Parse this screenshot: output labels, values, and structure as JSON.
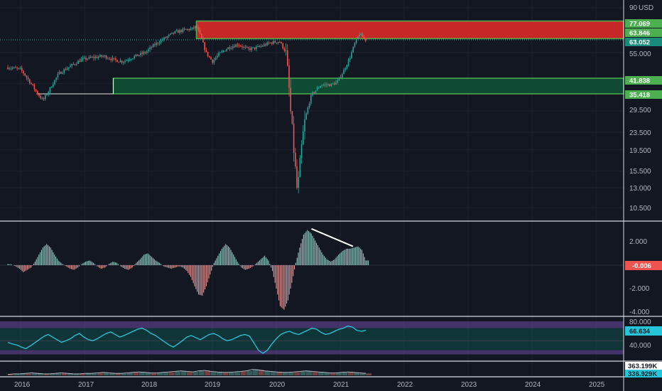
{
  "currency": "USD",
  "colors": {
    "background": "#131722",
    "bull": "#26a69a",
    "bear": "#ef5350",
    "resistance_zone": "#c62828",
    "support_zone": "#0f4a33",
    "zone_border": "#4caf50",
    "rsi_line": "#26c6da",
    "rsi_band": "#7e57c2",
    "histogram_pos": "#9fd8cf",
    "histogram_neg": "#f3a3a3"
  },
  "chart_data": [
    {
      "type": "candlestick",
      "panel": "price",
      "x_ticks": [
        "2016",
        "2017",
        "2018",
        "2019",
        "2020",
        "2021",
        "2022",
        "2023",
        "2024",
        "2025"
      ],
      "y_scale": "log",
      "y_tick_labels": [
        "90",
        "55.000",
        "39.500",
        "29.500",
        "23.500",
        "19.500",
        "15.500",
        "13.000",
        "10.500"
      ],
      "price_labels": [
        "77.069",
        "63.846",
        "63.052",
        "41.838",
        "35.418"
      ],
      "zones": [
        {
          "name": "resistance",
          "from": 63.846,
          "to": 77.069,
          "start": 2018.75
        },
        {
          "name": "support",
          "from": 35.418,
          "to": 41.838,
          "start": 2017.45
        }
      ],
      "last_price": 63.052,
      "path": [
        [
          2015.8,
          47
        ],
        [
          2016.0,
          46
        ],
        [
          2016.15,
          40
        ],
        [
          2016.25,
          36
        ],
        [
          2016.35,
          33
        ],
        [
          2016.45,
          37
        ],
        [
          2016.6,
          44
        ],
        [
          2016.8,
          48
        ],
        [
          2016.95,
          51
        ],
        [
          2017.1,
          52
        ],
        [
          2017.3,
          53
        ],
        [
          2017.45,
          51
        ],
        [
          2017.6,
          50
        ],
        [
          2017.8,
          53
        ],
        [
          2017.95,
          55
        ],
        [
          2018.1,
          60
        ],
        [
          2018.25,
          64
        ],
        [
          2018.4,
          68
        ],
        [
          2018.55,
          70
        ],
        [
          2018.7,
          71
        ],
        [
          2018.75,
          73
        ],
        [
          2018.8,
          67
        ],
        [
          2018.9,
          55
        ],
        [
          2019.0,
          50
        ],
        [
          2019.1,
          54
        ],
        [
          2019.25,
          58
        ],
        [
          2019.4,
          60
        ],
        [
          2019.55,
          57
        ],
        [
          2019.7,
          58
        ],
        [
          2019.9,
          61
        ],
        [
          2020.05,
          62
        ],
        [
          2020.15,
          55
        ],
        [
          2020.22,
          30
        ],
        [
          2020.28,
          18
        ],
        [
          2020.33,
          12
        ],
        [
          2020.38,
          18
        ],
        [
          2020.45,
          27
        ],
        [
          2020.55,
          35
        ],
        [
          2020.7,
          39
        ],
        [
          2020.85,
          39
        ],
        [
          2020.95,
          40
        ],
        [
          2021.05,
          45
        ],
        [
          2021.15,
          52
        ],
        [
          2021.25,
          63
        ],
        [
          2021.3,
          67
        ],
        [
          2021.35,
          65
        ],
        [
          2021.4,
          63
        ]
      ]
    },
    {
      "type": "bar",
      "panel": "oscillator",
      "y_tick_labels": [
        "2.000",
        "-2.000",
        "-4.000"
      ],
      "last_value": "-0.006",
      "ylim": [
        -4.3,
        3.0
      ],
      "x_range": [
        2015.8,
        2021.4
      ],
      "values": [
        0.1,
        0.05,
        -0.1,
        -0.3,
        -0.6,
        -0.4,
        -0.2,
        0.3,
        0.9,
        1.5,
        1.8,
        1.5,
        0.9,
        0.4,
        0.1,
        -0.1,
        -0.3,
        -0.4,
        -0.2,
        0.1,
        0.3,
        0.4,
        0.2,
        -0.1,
        -0.3,
        -0.2,
        0.1,
        0.3,
        0.2,
        -0.1,
        -0.3,
        -0.4,
        -0.2,
        0.2,
        0.5,
        0.9,
        1.0,
        0.7,
        0.4,
        0.2,
        -0.1,
        -0.2,
        -0.3,
        -0.2,
        -0.1,
        -0.2,
        -0.5,
        -1.0,
        -1.8,
        -2.5,
        -2.6,
        -1.8,
        -0.8,
        0.2,
        0.8,
        1.4,
        1.8,
        1.5,
        0.9,
        0.3,
        -0.2,
        -0.4,
        -0.3,
        -0.1,
        0.2,
        0.5,
        0.8,
        0.4,
        -0.5,
        -2.0,
        -3.5,
        -3.8,
        -3.0,
        -1.5,
        0.2,
        1.5,
        2.6,
        3.0,
        2.7,
        2.1,
        1.5,
        0.9,
        0.5,
        0.3,
        0.5,
        0.9,
        1.2,
        1.4,
        1.4,
        1.5,
        1.6,
        1.3,
        0.4
      ],
      "trendline": [
        [
          2020.55,
          3.1
        ],
        [
          2021.2,
          1.6
        ]
      ]
    },
    {
      "type": "line",
      "panel": "rsi",
      "y_tick_labels": [
        "80.000",
        "40.000"
      ],
      "last_value": "66.634",
      "ylim": [
        15,
        85
      ],
      "bands": [
        70,
        30
      ],
      "x_range": [
        2015.8,
        2021.4
      ],
      "values": [
        45,
        42,
        40,
        36,
        33,
        38,
        44,
        50,
        56,
        60,
        55,
        50,
        45,
        48,
        52,
        58,
        62,
        55,
        50,
        48,
        52,
        57,
        62,
        65,
        60,
        55,
        58,
        62,
        66,
        70,
        72,
        68,
        62,
        58,
        52,
        46,
        40,
        36,
        42,
        48,
        55,
        58,
        54,
        50,
        55,
        60,
        62,
        58,
        52,
        48,
        50,
        54,
        58,
        60,
        57,
        44,
        30,
        24,
        30,
        42,
        52,
        60,
        64,
        66,
        62,
        60,
        64,
        68,
        72,
        70,
        64,
        60,
        62,
        66,
        70,
        72,
        76,
        74,
        68,
        66,
        68
      ]
    },
    {
      "type": "area",
      "panel": "volume",
      "y_tick_labels": [
        "363.199K",
        "336.929K"
      ],
      "x_range": [
        2015.8,
        2021.4
      ],
      "values": [
        2,
        3,
        3,
        4,
        5,
        4,
        3,
        3,
        4,
        5,
        4,
        3,
        3,
        4,
        4,
        5,
        6,
        5,
        4,
        4,
        5,
        6,
        7,
        6,
        5,
        5,
        6,
        7,
        8,
        9,
        8,
        7,
        9,
        10,
        8,
        7,
        6,
        6,
        7,
        8,
        9,
        12,
        11,
        9,
        8,
        7,
        6,
        6,
        7,
        8,
        9,
        8,
        7,
        6,
        5,
        5,
        6,
        7,
        6,
        5,
        4
      ]
    }
  ]
}
